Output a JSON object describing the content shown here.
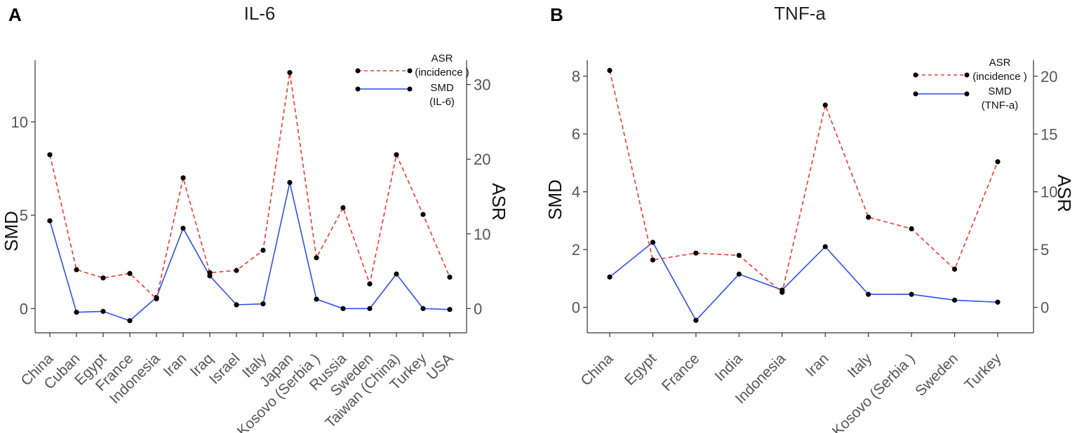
{
  "colors": {
    "asr": "#ee3a2c",
    "smd": "#2f4fea",
    "point": "#000000",
    "axis": "#333333",
    "tick_text": "#555555"
  },
  "chart_data": [
    {
      "type": "line",
      "panel_label": "A",
      "title": "IL-6",
      "categories": [
        "China",
        "Cuban",
        "Egypt",
        "France",
        "Indonesia",
        "Iran",
        "Iraq",
        "Israel",
        "Italy",
        "Japan",
        "Kosovo (Serbia )",
        "Russia",
        "Sweden",
        "Taiwan (China)",
        "Turkey",
        "USA"
      ],
      "ylabel_left": "SMD",
      "ylabel_right": "ASR",
      "y_left_range": [
        -1.3,
        13.3
      ],
      "y_left_ticks": [
        0,
        5,
        10
      ],
      "y_right_range": [
        -3.25,
        33.25
      ],
      "y_right_ticks": [
        0,
        10,
        20,
        30
      ],
      "series": [
        {
          "name": "SMD (IL-6)",
          "axis": "left",
          "style": "solid",
          "values": [
            4.7,
            -0.2,
            -0.15,
            -0.65,
            0.6,
            4.3,
            1.75,
            0.2,
            0.25,
            6.75,
            0.5,
            0.0,
            0.0,
            1.85,
            0.0,
            -0.05
          ]
        },
        {
          "name": "ASR (incidence)",
          "axis": "right",
          "style": "dashed",
          "values": [
            20.6,
            5.2,
            4.1,
            4.7,
            1.3,
            17.5,
            4.8,
            5.1,
            7.8,
            31.6,
            6.8,
            13.5,
            3.3,
            20.6,
            12.6,
            4.2
          ]
        }
      ],
      "legend": [
        {
          "line1": "ASR",
          "line2": "(incidence )",
          "series": "ASR (incidence)"
        },
        {
          "line1": "SMD",
          "line2": "(IL-6)",
          "series": "SMD (IL-6)"
        }
      ],
      "legend_position": "top-right",
      "grid": false
    },
    {
      "type": "line",
      "panel_label": "B",
      "title": "TNF-a",
      "categories": [
        "China",
        "Egypt",
        "France",
        "India",
        "Indonesia",
        "Iran",
        "Italy",
        "Kosovo (Serbia )",
        "Sweden",
        "Turkey"
      ],
      "ylabel_left": "SMD",
      "ylabel_right": "ASR",
      "y_left_range": [
        -0.88,
        8.55
      ],
      "y_left_ticks": [
        0,
        2,
        4,
        6,
        8
      ],
      "y_right_range": [
        -2.2,
        21.38
      ],
      "y_right_ticks": [
        0,
        5,
        10,
        15,
        20
      ],
      "series": [
        {
          "name": "SMD (TNF-a)",
          "axis": "left",
          "style": "solid",
          "values": [
            1.05,
            2.25,
            -0.45,
            1.15,
            0.6,
            2.1,
            0.45,
            0.45,
            0.25,
            0.18
          ]
        },
        {
          "name": "ASR (incidence)",
          "axis": "right",
          "style": "dashed",
          "values": [
            20.5,
            4.1,
            4.7,
            4.5,
            1.3,
            17.5,
            7.8,
            6.8,
            3.3,
            12.6
          ]
        }
      ],
      "legend": [
        {
          "line1": "ASR",
          "line2": "(incidence )",
          "series": "ASR (incidence)"
        },
        {
          "line1": "SMD",
          "line2": "(TNF-a)",
          "series": "SMD (TNF-a)"
        }
      ],
      "legend_position": "top-right",
      "grid": false
    }
  ]
}
